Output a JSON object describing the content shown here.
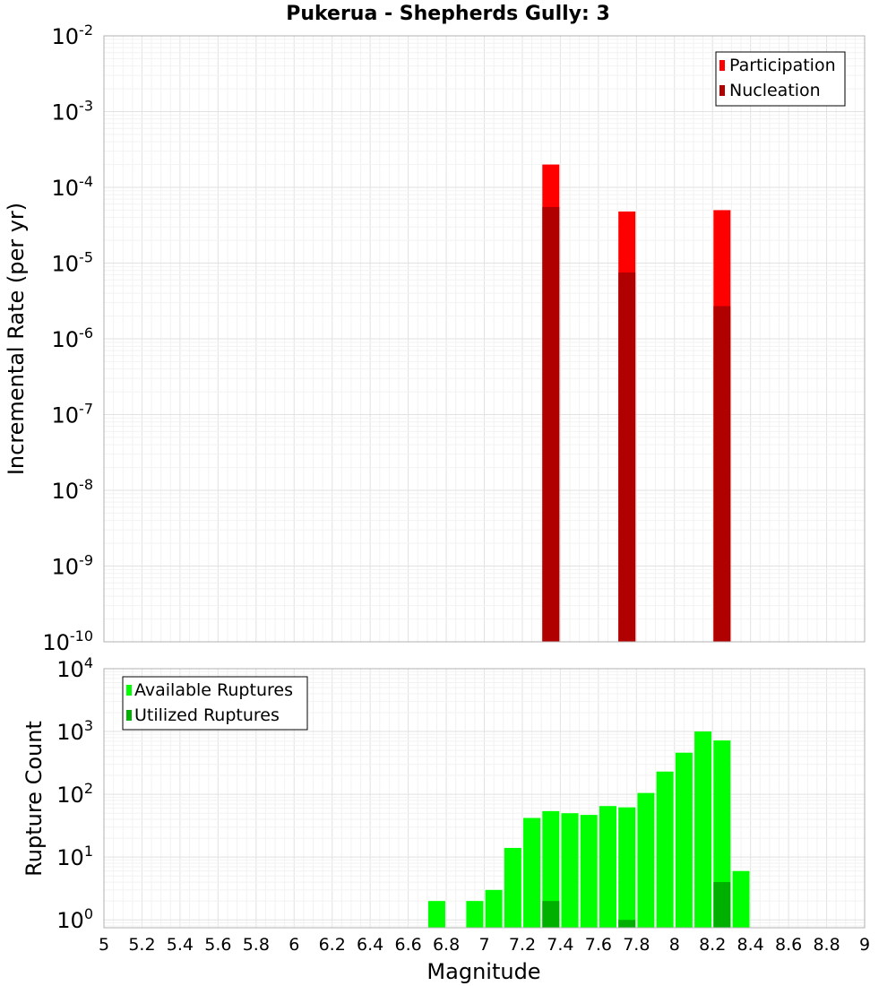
{
  "chart_data": [
    {
      "type": "bar",
      "title": "Pukerua - Shepherds Gully: 3",
      "xlabel": "",
      "ylabel": "Incremental Rate (per yr)",
      "yscale": "log",
      "ylim": [
        1e-10,
        0.01
      ],
      "xlim": [
        5,
        9
      ],
      "y_ticks": [
        "10^-10",
        "10^-9",
        "10^-8",
        "10^-7",
        "10^-6",
        "10^-5",
        "10^-4",
        "10^-3",
        "10^-2"
      ],
      "legend_position": "top-right",
      "series": [
        {
          "name": "Participation",
          "color": "#ff0000",
          "x": [
            7.35,
            7.75,
            8.25
          ],
          "values": [
            0.0002,
            4.8e-05,
            5e-05
          ]
        },
        {
          "name": "Nucleation",
          "color": "#b00000",
          "x": [
            7.35,
            7.75,
            8.25
          ],
          "values": [
            5.5e-05,
            7.5e-06,
            2.7e-06
          ]
        }
      ]
    },
    {
      "type": "bar",
      "title": "",
      "xlabel": "Magnitude",
      "ylabel": "Rupture Count",
      "yscale": "log",
      "ylim": [
        0.75,
        10000
      ],
      "xlim": [
        5,
        9
      ],
      "y_ticks": [
        "10^0",
        "10^1",
        "10^2",
        "10^3",
        "10^4"
      ],
      "x_ticks": [
        "5",
        "5.2",
        "5.4",
        "5.6",
        "5.8",
        "6",
        "6.2",
        "6.4",
        "6.6",
        "6.8",
        "7",
        "7.2",
        "7.4",
        "7.6",
        "7.8",
        "8",
        "8.2",
        "8.4",
        "8.6",
        "8.8",
        "9"
      ],
      "legend_position": "top-left",
      "series": [
        {
          "name": "Available Ruptures",
          "color": "#00ff00",
          "x": [
            6.75,
            6.95,
            7.05,
            7.15,
            7.25,
            7.35,
            7.45,
            7.55,
            7.65,
            7.75,
            7.85,
            7.95,
            8.05,
            8.15,
            8.25,
            8.35
          ],
          "values": [
            2,
            2,
            3,
            14,
            42,
            54,
            50,
            47,
            65,
            62,
            105,
            230,
            460,
            1000,
            720,
            6
          ]
        },
        {
          "name": "Utilized Ruptures",
          "color": "#00b000",
          "x": [
            7.35,
            7.75,
            8.25
          ],
          "values": [
            2,
            1,
            4
          ]
        }
      ]
    }
  ]
}
